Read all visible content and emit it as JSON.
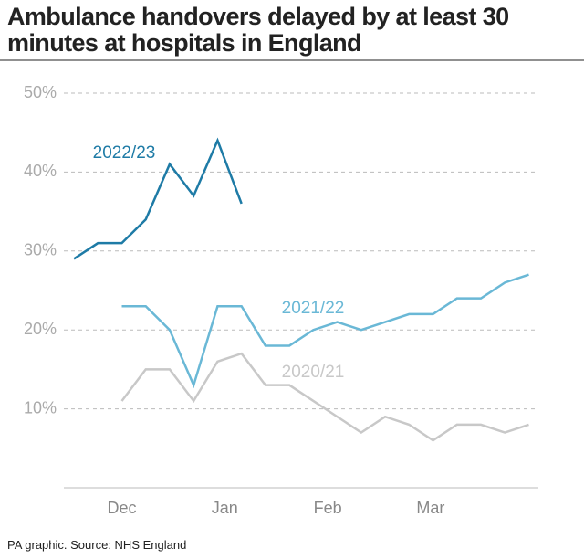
{
  "chart_data": {
    "type": "line",
    "title": "Ambulance handovers delayed by at least 30 minutes at hospitals in England",
    "source": "PA graphic. Source: NHS England",
    "x": [
      0,
      1,
      2,
      3,
      4,
      5,
      6,
      7,
      8,
      9,
      10,
      11,
      12,
      13,
      14,
      15,
      16,
      17,
      18,
      19
    ],
    "xlim": [
      -0.42,
      19.4
    ],
    "xticks": [
      {
        "value": 2,
        "label": "Dec"
      },
      {
        "value": 6.3,
        "label": "Jan"
      },
      {
        "value": 10.6,
        "label": "Feb"
      },
      {
        "value": 14.9,
        "label": "Mar"
      }
    ],
    "ylim": [
      0,
      50
    ],
    "yticks": [
      {
        "value": 10,
        "label": "10%"
      },
      {
        "value": 20,
        "label": "20%"
      },
      {
        "value": 30,
        "label": "30%"
      },
      {
        "value": 40,
        "label": "40%"
      },
      {
        "value": 50,
        "label": "50%"
      }
    ],
    "grid": true,
    "series": [
      {
        "name": "2022/23",
        "color": "#1e7ba6",
        "values": [
          29,
          31,
          31,
          34,
          41,
          37,
          44,
          36,
          null,
          null,
          null,
          null,
          null,
          null,
          null,
          null,
          null,
          null,
          null,
          null
        ]
      },
      {
        "name": "2021/22",
        "color": "#6ab8d6",
        "values": [
          null,
          null,
          23,
          23,
          20,
          13,
          23,
          23,
          18,
          18,
          20,
          21,
          20,
          21,
          22,
          22,
          24,
          24,
          26,
          27
        ]
      },
      {
        "name": "2020/21",
        "color": "#c8c8c8",
        "values": [
          null,
          null,
          11,
          15,
          15,
          11,
          16,
          17,
          13,
          13,
          11,
          9,
          7,
          9,
          8,
          6,
          8,
          8,
          7,
          8
        ]
      }
    ]
  }
}
